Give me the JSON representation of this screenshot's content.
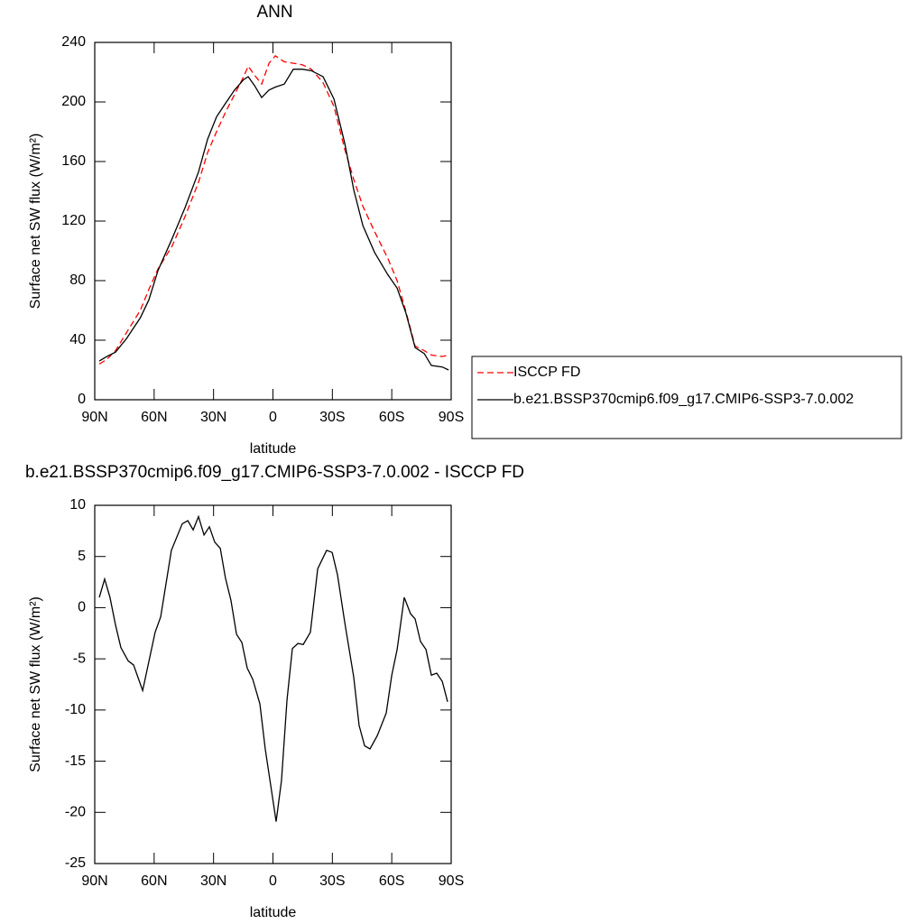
{
  "chart_data": [
    {
      "type": "line",
      "title": "ANN",
      "xlabel": "latitude",
      "ylabel": "Surface net SW flux (W/m²)",
      "xlim": [
        90,
        -90
      ],
      "xticks": [
        {
          "value": 90,
          "label": "90N"
        },
        {
          "value": 60,
          "label": "60N"
        },
        {
          "value": 30,
          "label": "30N"
        },
        0,
        {
          "value": -30,
          "label": "30S"
        },
        {
          "value": -60,
          "label": "60S"
        },
        {
          "value": -90,
          "label": "90S"
        }
      ],
      "ylim": [
        0,
        240
      ],
      "yticks": [
        0,
        40,
        80,
        120,
        160,
        200,
        240
      ],
      "legend": "right",
      "x": [
        87.7,
        84,
        79.5,
        74,
        67,
        62.7,
        58,
        51,
        44.4,
        37.6,
        33,
        28.5,
        24,
        19.4,
        14.8,
        12.5,
        9.3,
        5.7,
        2,
        -1.2,
        -5.7,
        -10.3,
        -14.8,
        -19.4,
        -25.3,
        -30.8,
        -36.3,
        -40.8,
        -45.4,
        -51.3,
        -58,
        -62.7,
        -67.2,
        -71.8,
        -76.4,
        -80,
        -85.5,
        -88.7
      ],
      "series": [
        {
          "name": "ISCCP FD",
          "color": "#ff0000",
          "linestyle": "dashed",
          "values": [
            24,
            27,
            33,
            45,
            60,
            74,
            88,
            103,
            123,
            146,
            166,
            180,
            193,
            205,
            217,
            224,
            218,
            212,
            226,
            231,
            227,
            226,
            225,
            222,
            213,
            197,
            168,
            148,
            130,
            113,
            95,
            80,
            59,
            36,
            33,
            30,
            29,
            30
          ]
        },
        {
          "name": "b.e21.BSSP370cmip6.f09_g17.CMIP6-SSP3-7.0.002",
          "color": "#000000",
          "linestyle": "solid",
          "values": [
            26,
            29,
            32,
            41,
            55,
            67,
            87,
            108,
            129,
            153,
            175,
            190,
            199,
            208,
            215,
            217,
            211,
            203,
            208,
            210,
            212,
            222,
            222,
            221,
            217,
            202,
            172,
            141,
            117,
            99,
            84,
            75,
            58,
            35,
            31,
            23,
            22,
            20
          ]
        }
      ]
    },
    {
      "type": "line",
      "title": "b.e21.BSSP370cmip6.f09_g17.CMIP6-SSP3-7.0.002 - ISCCP FD",
      "xlabel": "latitude",
      "ylabel": "Surface net SW flux (W/m²)",
      "xlim": [
        90,
        -90
      ],
      "xticks": [
        {
          "value": 90,
          "label": "90N"
        },
        {
          "value": 60,
          "label": "60N"
        },
        {
          "value": 30,
          "label": "30N"
        },
        0,
        {
          "value": -30,
          "label": "30S"
        },
        {
          "value": -60,
          "label": "60S"
        },
        {
          "value": -90,
          "label": "90S"
        }
      ],
      "ylim": [
        -25,
        10
      ],
      "yticks": [
        -25,
        -20,
        -15,
        -10,
        -5,
        0,
        5,
        10
      ],
      "x": [
        87.7,
        85,
        82.3,
        79.5,
        76.8,
        73.1,
        70.4,
        65.8,
        59.5,
        56.7,
        51.3,
        45.8,
        43,
        40.3,
        37.6,
        34.8,
        32.1,
        29.4,
        26.6,
        24,
        21.2,
        18.4,
        15.7,
        13,
        10.2,
        6.6,
        3.9,
        1.1,
        -1.6,
        -4.3,
        -7.1,
        -9.8,
        -12.6,
        -15.3,
        -18.9,
        -22.6,
        -27.1,
        -29.9,
        -32.6,
        -36.3,
        -40.8,
        -43.5,
        -46.3,
        -49,
        -52.7,
        -57.2,
        -60,
        -62.7,
        -66.3,
        -69.5,
        -71.8,
        -74.5,
        -77.3,
        -80,
        -82.7,
        -85.5,
        -88.2
      ],
      "series": [
        {
          "color": "#000000",
          "linestyle": "solid",
          "values": [
            1.0,
            2.8,
            1.0,
            -1.7,
            -3.9,
            -5.2,
            -5.6,
            -8.1,
            -2.4,
            -0.9,
            5.6,
            8.2,
            8.5,
            7.6,
            8.9,
            7.1,
            7.9,
            6.4,
            5.8,
            2.9,
            0.7,
            -2.6,
            -3.4,
            -5.9,
            -7.0,
            -9.4,
            -13.8,
            -17.4,
            -20.9,
            -16.9,
            -9.0,
            -4.0,
            -3.5,
            -3.6,
            -2.4,
            3.8,
            5.6,
            5.4,
            3.2,
            -1.5,
            -6.8,
            -11.5,
            -13.5,
            -13.8,
            -12.5,
            -10.3,
            -6.6,
            -4.1,
            1.0,
            -0.6,
            -1.1,
            -3.3,
            -4.1,
            -6.6,
            -6.4,
            -7.2,
            -9.2
          ]
        }
      ]
    }
  ]
}
